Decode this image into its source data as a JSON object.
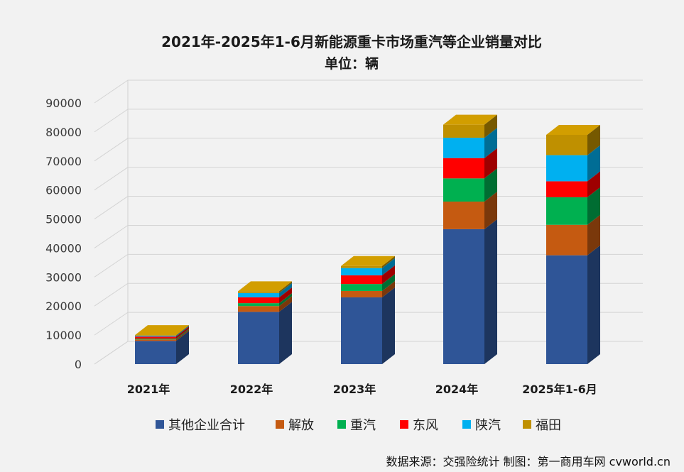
{
  "chart_data": {
    "type": "bar",
    "stacked": true,
    "three_d": true,
    "title": "2021年-2025年1-6月新能源重卡市场重汽等企业销量对比",
    "subtitle": "单位：辆",
    "categories": [
      "2021年",
      "2022年",
      "2023年",
      "2024年",
      "2025年1-6月"
    ],
    "ylim": [
      0,
      90000
    ],
    "yticks": [
      "0",
      "10000",
      "20000",
      "30000",
      "40000",
      "50000",
      "60000",
      "70000",
      "80000",
      "90000"
    ],
    "grid": true,
    "legend_position": "bottom",
    "series": [
      {
        "name": "其他企业合计",
        "color": "#2f5597",
        "values": [
          8000,
          18000,
          23000,
          46500,
          37500
        ]
      },
      {
        "name": "解放",
        "color": "#c55a11",
        "values": [
          500,
          2000,
          2200,
          9500,
          10500
        ]
      },
      {
        "name": "重汽",
        "color": "#00b050",
        "values": [
          300,
          1000,
          2400,
          8000,
          9500
        ]
      },
      {
        "name": "东风",
        "color": "#ff0000",
        "values": [
          700,
          2000,
          3000,
          7000,
          5500
        ]
      },
      {
        "name": "陕汽",
        "color": "#00b0f0",
        "values": [
          300,
          1500,
          2500,
          7000,
          9000
        ]
      },
      {
        "name": "福田",
        "color": "#bf9000",
        "values": [
          200,
          600,
          700,
          4500,
          7000
        ]
      }
    ]
  },
  "footer": {
    "source": "数据来源：交强险统计 制图：第一商用车网 cvworld.cn"
  }
}
